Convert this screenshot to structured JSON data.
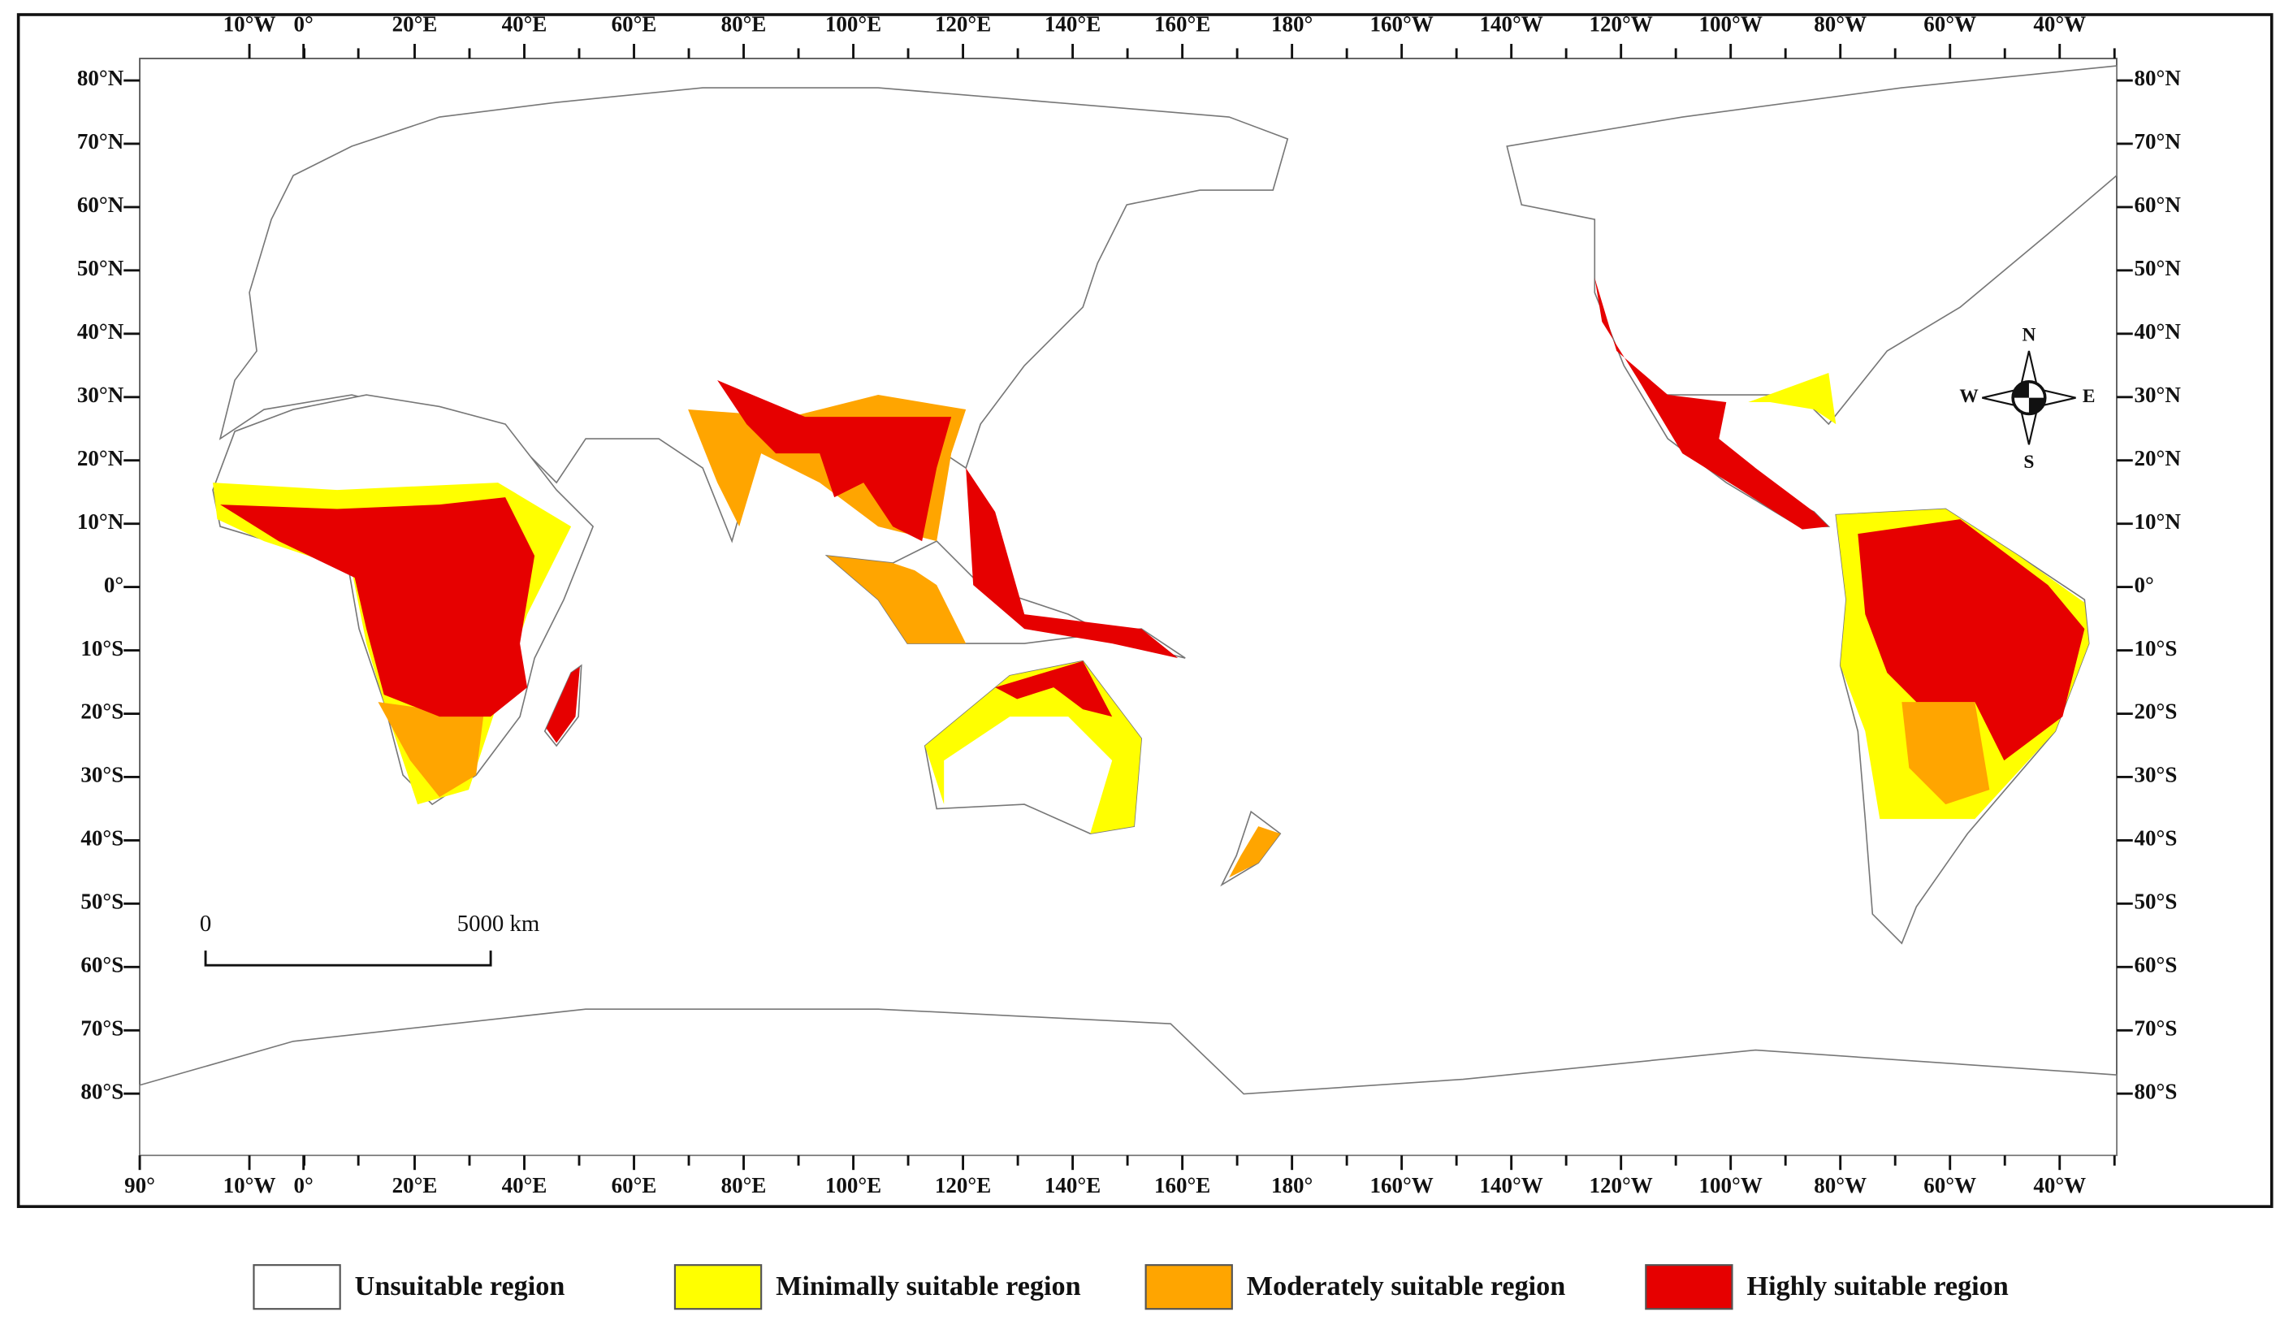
{
  "map": {
    "top_ticks": [
      "10°W",
      "0°",
      "20°E",
      "40°E",
      "60°E",
      "80°E",
      "100°E",
      "120°E",
      "140°E",
      "160°E",
      "180°",
      "160°W",
      "140°W",
      "120°W",
      "100°W",
      "80°W",
      "60°W",
      "40°W"
    ],
    "bottom_ticks": [
      "90°",
      "10°W",
      "0°",
      "20°E",
      "40°E",
      "60°E",
      "80°E",
      "100°E",
      "120°E",
      "140°E",
      "160°E",
      "180°",
      "160°W",
      "140°W",
      "120°W",
      "100°W",
      "80°W",
      "60°W",
      "40°W"
    ],
    "left_ticks": [
      "80°N",
      "70°N",
      "60°N",
      "50°N",
      "40°N",
      "30°N",
      "20°N",
      "10°N",
      "0°",
      "10°S",
      "20°S",
      "30°S",
      "40°S",
      "50°S",
      "60°S",
      "70°S",
      "80°S"
    ],
    "right_ticks": [
      "80°N",
      "70°N",
      "60°N",
      "50°N",
      "40°N",
      "30°N",
      "20°N",
      "10°N",
      "0°",
      "10°S",
      "20°S",
      "30°S",
      "40°S",
      "50°S",
      "60°S",
      "70°S",
      "80°S"
    ],
    "scale_bar": {
      "start": "0",
      "end": "5000 km"
    },
    "compass": {
      "north": "N",
      "south": "S",
      "east": "E",
      "west": "W"
    },
    "legend": [
      {
        "label": "Unsuitable region",
        "color": "#ffffff"
      },
      {
        "label": "Minimally suitable region",
        "color": "#ffff00"
      },
      {
        "label": "Moderately suitable region",
        "color": "#ffa500"
      },
      {
        "label": "Highly suitable region",
        "color": "#e60000"
      }
    ]
  }
}
